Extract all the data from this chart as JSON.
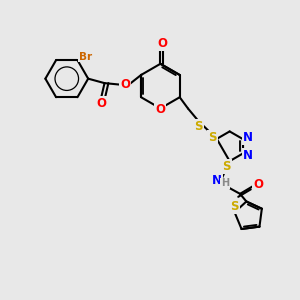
{
  "bg_color": "#e8e8e8",
  "bond_color": "#000000",
  "bond_width": 1.5,
  "atom_colors": {
    "O": "#ff0000",
    "N": "#0000ff",
    "S": "#ccaa00",
    "Br": "#cc6600",
    "H": "#888888",
    "C": "#000000"
  },
  "font_size_atom": 8.5,
  "font_size_br": 7.5,
  "font_size_h": 7
}
